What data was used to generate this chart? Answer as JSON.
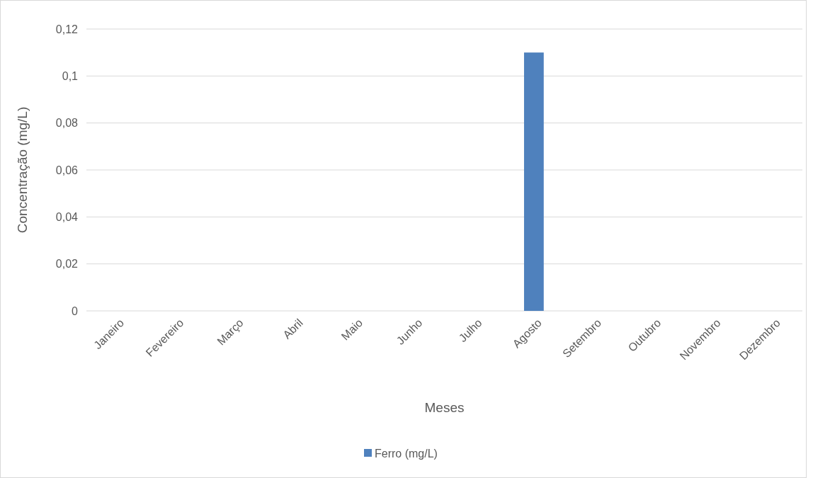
{
  "chart_data": {
    "type": "bar",
    "xlabel": "Meses",
    "ylabel": "Concentração (mg/L)",
    "categories": [
      "Janeiro",
      "Fevereiro",
      "Março",
      "Abril",
      "Maio",
      "Junho",
      "Julho",
      "Agosto",
      "Setembro",
      "Outubro",
      "Novembro",
      "Dezembro"
    ],
    "series": [
      {
        "name": "Ferro (mg/L)",
        "color": "#4f81bd",
        "values": [
          0,
          0,
          0,
          0,
          0,
          0,
          0,
          0.11,
          0,
          0,
          0,
          0
        ]
      }
    ],
    "ylim": [
      0,
      0.12
    ],
    "yticks": [
      0,
      {
        "value": 0.02,
        "label": "0,02"
      },
      {
        "value": 0.04,
        "label": "0,04"
      },
      {
        "value": 0.06,
        "label": "0,06"
      },
      {
        "value": 0.08,
        "label": "0,08"
      },
      {
        "value": 0.1,
        "label": "0,1"
      },
      {
        "value": 0.12,
        "label": "0,12"
      }
    ],
    "grid": "y",
    "legend": "bottom"
  }
}
